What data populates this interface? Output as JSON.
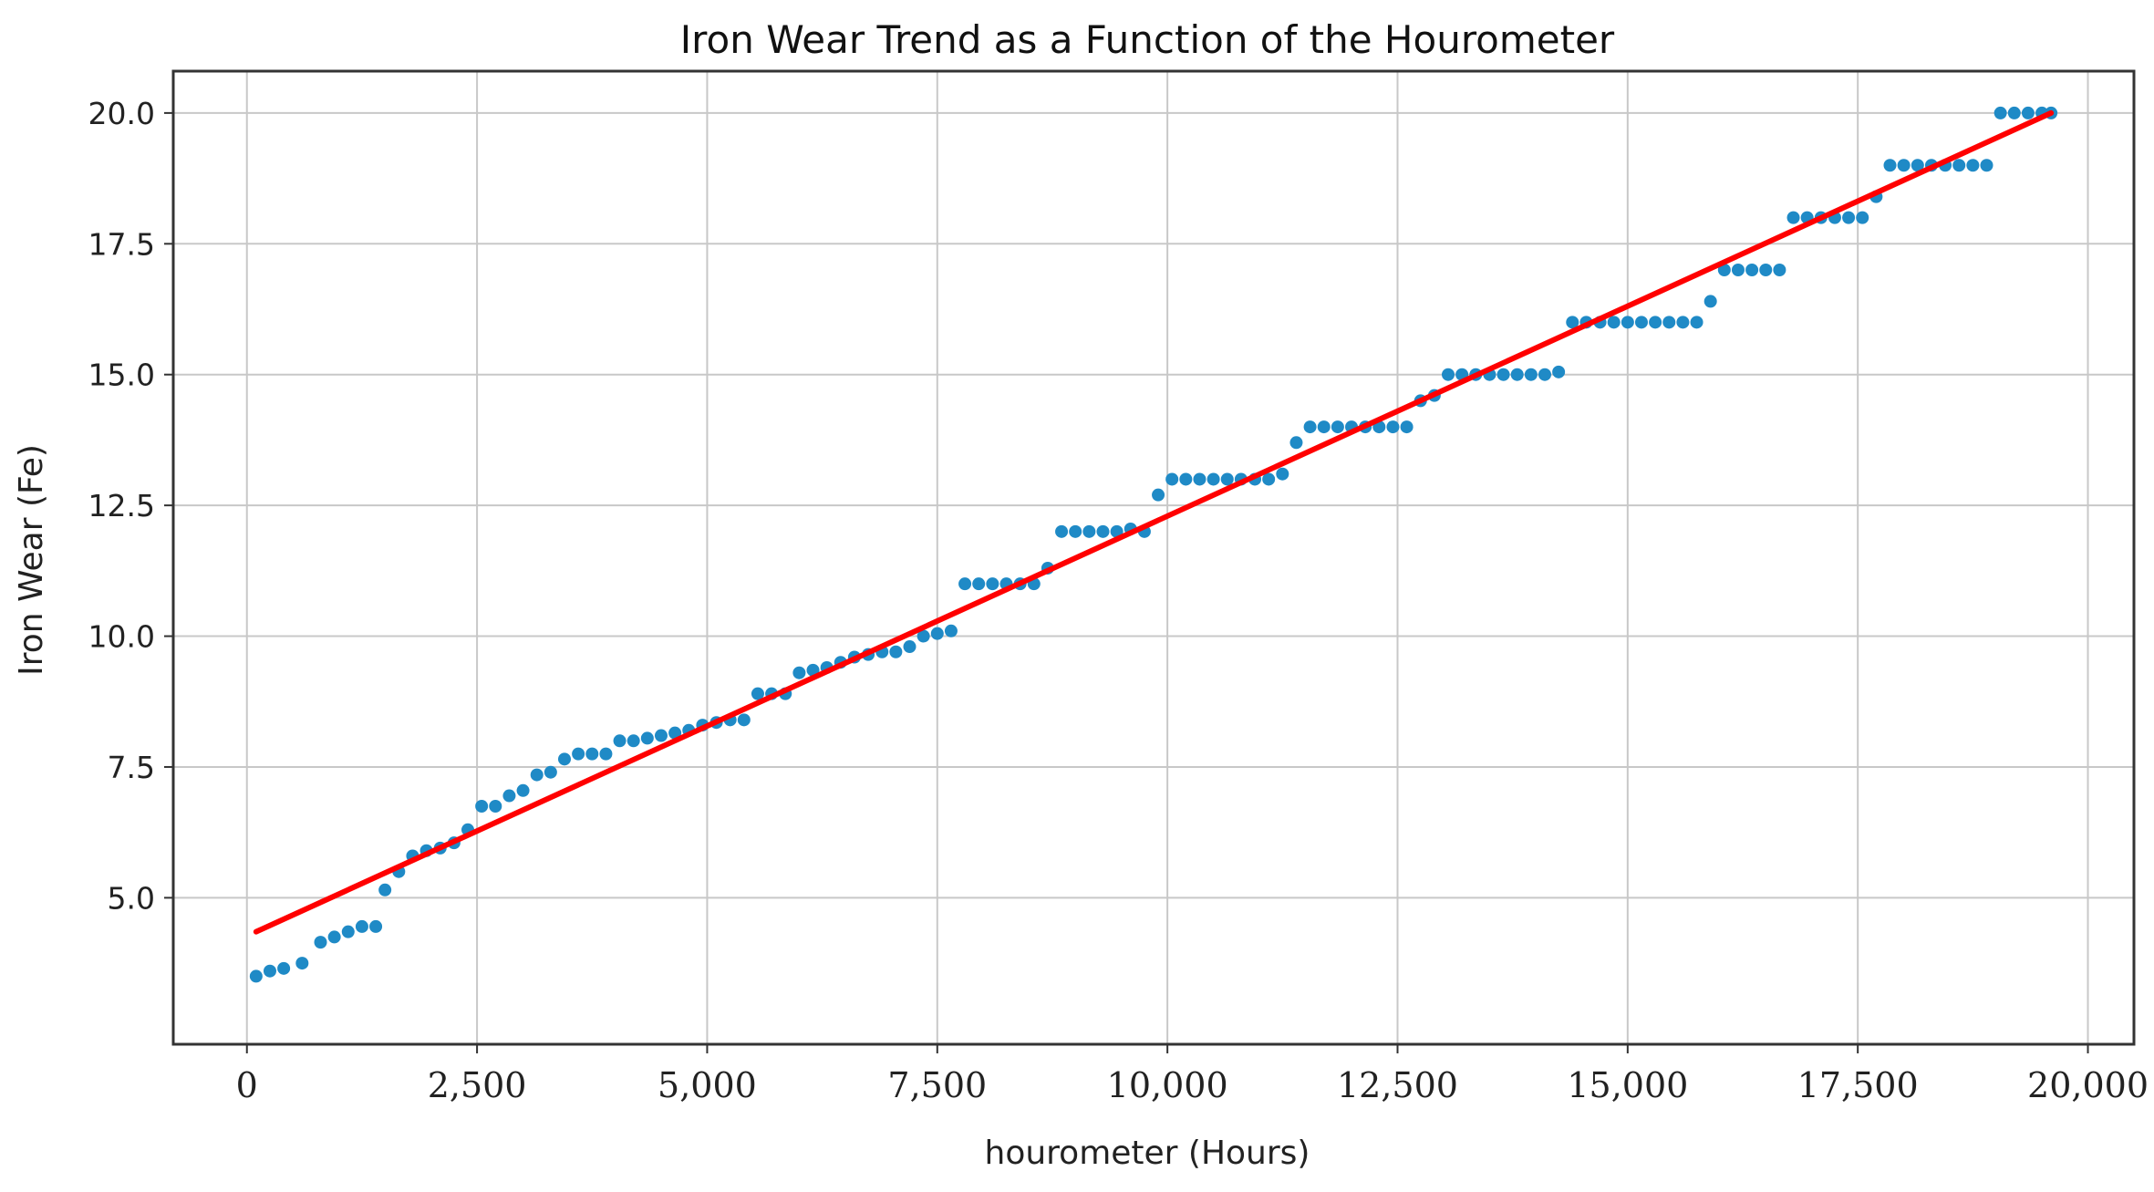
{
  "chart_data": {
    "type": "scatter",
    "title": "Iron Wear Trend as a Function of the Hourometer",
    "xlabel": "hourometer (Hours)",
    "ylabel": "Iron Wear (Fe)",
    "xlim": [
      -800,
      20500
    ],
    "ylim": [
      2.2,
      20.8
    ],
    "xticks": [
      0,
      2500,
      5000,
      7500,
      10000,
      12500,
      15000,
      17500,
      20000
    ],
    "xtick_labels": [
      "0",
      "2,500",
      "5,000",
      "7,500",
      "10,000",
      "12,500",
      "15,000",
      "17,500",
      "20,000"
    ],
    "yticks": [
      5.0,
      7.5,
      10.0,
      12.5,
      15.0,
      17.5,
      20.0
    ],
    "ytick_labels": [
      "5.0",
      "7.5",
      "10.0",
      "12.5",
      "15.0",
      "17.5",
      "20.0"
    ],
    "grid": true,
    "series": [
      {
        "type": "scatter",
        "color": "#1f8ac6",
        "points": [
          [
            100,
            3.5
          ],
          [
            250,
            3.6
          ],
          [
            400,
            3.65
          ],
          [
            600,
            3.75
          ],
          [
            800,
            4.15
          ],
          [
            950,
            4.25
          ],
          [
            1100,
            4.35
          ],
          [
            1250,
            4.45
          ],
          [
            1400,
            4.45
          ],
          [
            1500,
            5.15
          ],
          [
            1650,
            5.5
          ],
          [
            1800,
            5.8
          ],
          [
            1950,
            5.9
          ],
          [
            2100,
            5.95
          ],
          [
            2250,
            6.05
          ],
          [
            2400,
            6.3
          ],
          [
            2550,
            6.75
          ],
          [
            2700,
            6.75
          ],
          [
            2850,
            6.95
          ],
          [
            3000,
            7.05
          ],
          [
            3150,
            7.35
          ],
          [
            3300,
            7.4
          ],
          [
            3450,
            7.65
          ],
          [
            3600,
            7.75
          ],
          [
            3750,
            7.75
          ],
          [
            3900,
            7.75
          ],
          [
            4050,
            8.0
          ],
          [
            4200,
            8.0
          ],
          [
            4350,
            8.05
          ],
          [
            4500,
            8.1
          ],
          [
            4650,
            8.15
          ],
          [
            4800,
            8.2
          ],
          [
            4950,
            8.3
          ],
          [
            5100,
            8.35
          ],
          [
            5250,
            8.4
          ],
          [
            5400,
            8.4
          ],
          [
            5550,
            8.9
          ],
          [
            5700,
            8.9
          ],
          [
            5850,
            8.9
          ],
          [
            6000,
            9.3
          ],
          [
            6150,
            9.35
          ],
          [
            6300,
            9.4
          ],
          [
            6450,
            9.5
          ],
          [
            6600,
            9.6
          ],
          [
            6750,
            9.65
          ],
          [
            6900,
            9.7
          ],
          [
            7050,
            9.7
          ],
          [
            7200,
            9.8
          ],
          [
            7350,
            10.0
          ],
          [
            7500,
            10.05
          ],
          [
            7650,
            10.1
          ],
          [
            7800,
            11.0
          ],
          [
            7950,
            11.0
          ],
          [
            8100,
            11.0
          ],
          [
            8250,
            11.0
          ],
          [
            8400,
            11.0
          ],
          [
            8550,
            11.0
          ],
          [
            8700,
            11.3
          ],
          [
            8850,
            12.0
          ],
          [
            9000,
            12.0
          ],
          [
            9150,
            12.0
          ],
          [
            9300,
            12.0
          ],
          [
            9450,
            12.0
          ],
          [
            9600,
            12.05
          ],
          [
            9750,
            12.0
          ],
          [
            9900,
            12.7
          ],
          [
            10050,
            13.0
          ],
          [
            10200,
            13.0
          ],
          [
            10350,
            13.0
          ],
          [
            10500,
            13.0
          ],
          [
            10650,
            13.0
          ],
          [
            10800,
            13.0
          ],
          [
            10950,
            13.0
          ],
          [
            11100,
            13.0
          ],
          [
            11250,
            13.1
          ],
          [
            11400,
            13.7
          ],
          [
            11550,
            14.0
          ],
          [
            11700,
            14.0
          ],
          [
            11850,
            14.0
          ],
          [
            12000,
            14.0
          ],
          [
            12150,
            14.0
          ],
          [
            12300,
            14.0
          ],
          [
            12450,
            14.0
          ],
          [
            12600,
            14.0
          ],
          [
            12750,
            14.5
          ],
          [
            12900,
            14.6
          ],
          [
            13050,
            15.0
          ],
          [
            13200,
            15.0
          ],
          [
            13350,
            15.0
          ],
          [
            13500,
            15.0
          ],
          [
            13650,
            15.0
          ],
          [
            13800,
            15.0
          ],
          [
            13950,
            15.0
          ],
          [
            14100,
            15.0
          ],
          [
            14250,
            15.05
          ],
          [
            14400,
            16.0
          ],
          [
            14550,
            16.0
          ],
          [
            14700,
            16.0
          ],
          [
            14850,
            16.0
          ],
          [
            15000,
            16.0
          ],
          [
            15150,
            16.0
          ],
          [
            15300,
            16.0
          ],
          [
            15450,
            16.0
          ],
          [
            15600,
            16.0
          ],
          [
            15750,
            16.0
          ],
          [
            15900,
            16.4
          ],
          [
            16050,
            17.0
          ],
          [
            16200,
            17.0
          ],
          [
            16350,
            17.0
          ],
          [
            16500,
            17.0
          ],
          [
            16650,
            17.0
          ],
          [
            16800,
            18.0
          ],
          [
            16950,
            18.0
          ],
          [
            17100,
            18.0
          ],
          [
            17250,
            18.0
          ],
          [
            17400,
            18.0
          ],
          [
            17550,
            18.0
          ],
          [
            17700,
            18.4
          ],
          [
            17850,
            19.0
          ],
          [
            18000,
            19.0
          ],
          [
            18150,
            19.0
          ],
          [
            18300,
            19.0
          ],
          [
            18450,
            19.0
          ],
          [
            18600,
            19.0
          ],
          [
            18750,
            19.0
          ],
          [
            18900,
            19.0
          ],
          [
            19050,
            20.0
          ],
          [
            19200,
            20.0
          ],
          [
            19350,
            20.0
          ],
          [
            19500,
            20.0
          ],
          [
            19600,
            20.0
          ]
        ]
      },
      {
        "type": "line",
        "color": "#ff0000",
        "x": [
          100,
          19600
        ],
        "y": [
          4.35,
          20.0
        ]
      }
    ]
  }
}
